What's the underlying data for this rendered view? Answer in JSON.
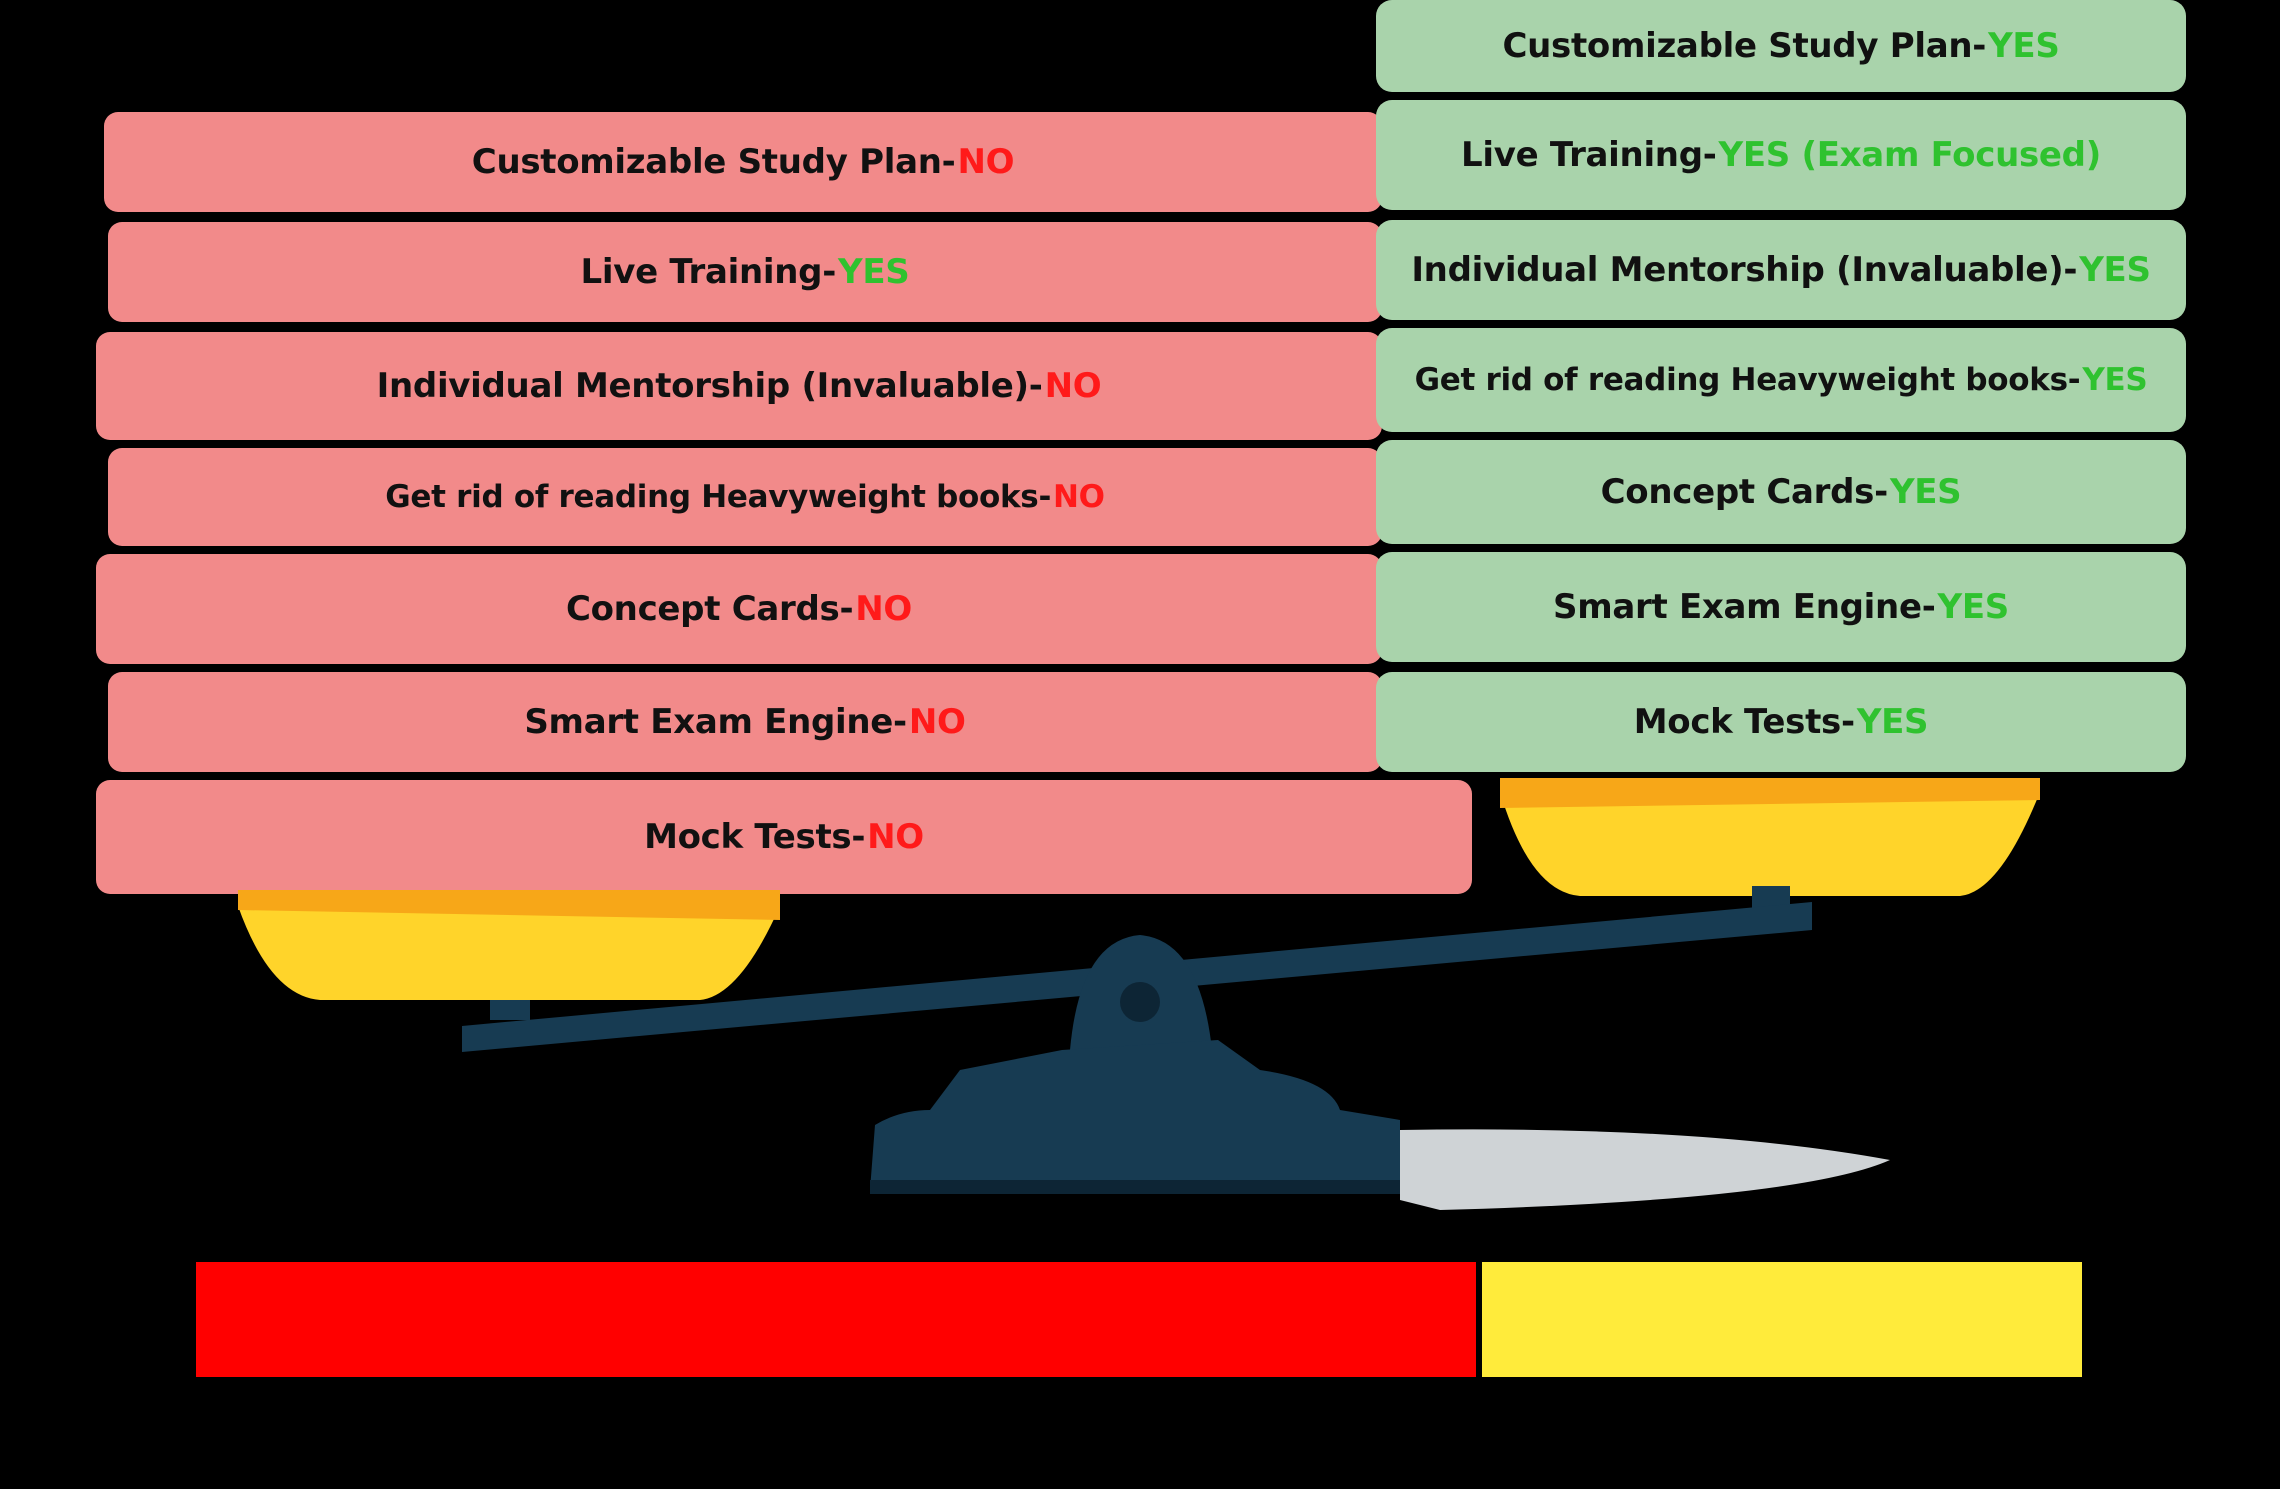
{
  "left_panel": {
    "rows": [
      {
        "feature": "Customizable Study Plan-",
        "value": "NO"
      },
      {
        "feature": "Live Training-",
        "value": "YES"
      },
      {
        "feature": "Individual Mentorship (Invaluable)-",
        "value": "NO"
      },
      {
        "feature": "Get rid of reading Heavyweight books-",
        "value": "NO"
      },
      {
        "feature": "Concept Cards-",
        "value": "NO"
      },
      {
        "feature": "Smart Exam Engine-",
        "value": "NO"
      },
      {
        "feature": "Mock Tests-",
        "value": "NO"
      }
    ]
  },
  "right_panel": {
    "rows": [
      {
        "feature": "Customizable Study Plan-",
        "value": "YES"
      },
      {
        "feature": "Live Training-",
        "value": "YES (Exam Focused)"
      },
      {
        "feature": "Individual Mentorship (Invaluable)-",
        "value": "YES"
      },
      {
        "feature": "Get rid of reading Heavyweight books-",
        "value": "YES"
      },
      {
        "feature": "Concept Cards-",
        "value": "YES"
      },
      {
        "feature": "Smart Exam Engine-",
        "value": "YES"
      },
      {
        "feature": "Mock Tests-",
        "value": "YES"
      }
    ]
  },
  "colors": {
    "background": "#000000",
    "left_card": "#f28a8a",
    "right_card": "#a9d3ab",
    "no_text": "#ff1a1a",
    "yes_text": "#2fc22f",
    "pan": "#ffd42a",
    "beam": "#173b52",
    "left_banner": "#ff0000",
    "right_banner": "#ffeb3b"
  },
  "footer": {
    "left_text": "",
    "right_text": ""
  }
}
